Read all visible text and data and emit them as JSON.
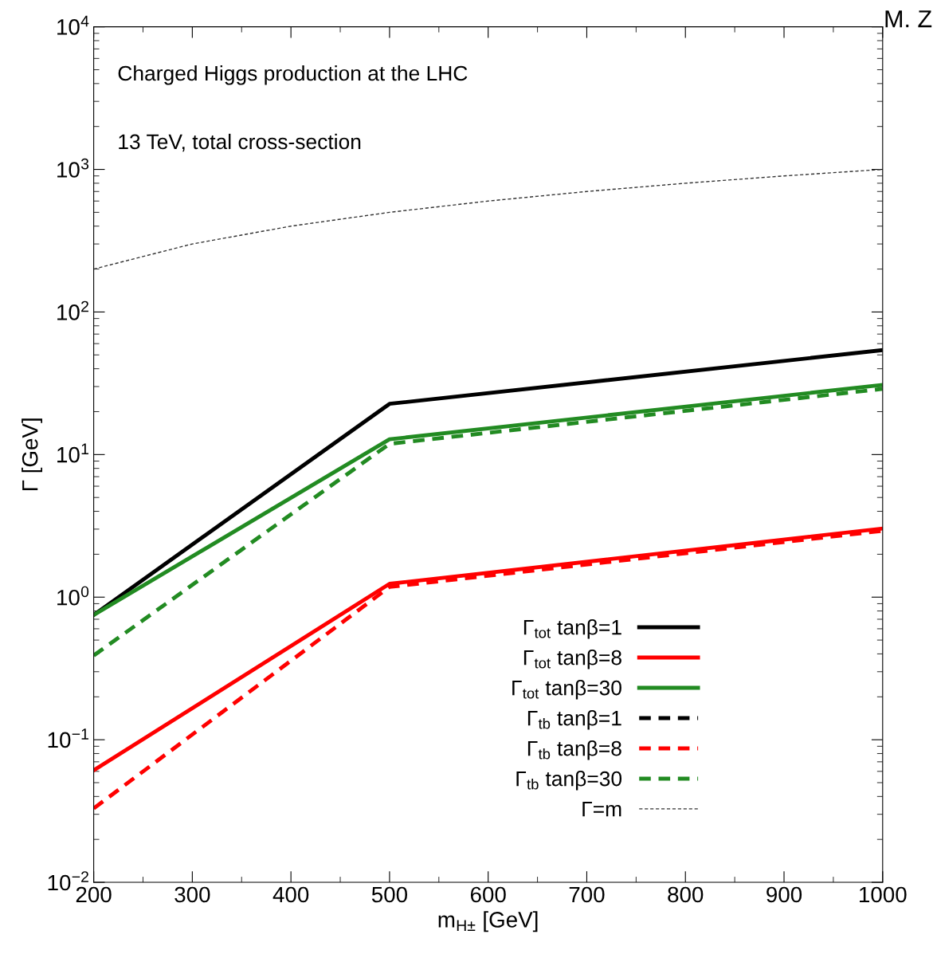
{
  "chart_data": {
    "type": "line",
    "xlabel": "m$_{H±}$ [GeV]",
    "ylabel": "Γ [GeV]",
    "annotations": [
      "Charged Higgs production at the LHC",
      "13 TeV, total cross-section",
      "M. Z"
    ],
    "x": [
      200,
      500,
      1000
    ],
    "series": [
      {
        "name": "Γ$_{tot}$ tanβ=1",
        "color": "#000000",
        "line_style": "solid",
        "values": [
          0.75,
          22.7,
          54
        ]
      },
      {
        "name": "Γ$_{tot}$ tanβ=8",
        "color": "#ff0000",
        "line_style": "solid",
        "values": [
          0.061,
          1.24,
          3.03
        ]
      },
      {
        "name": "Γ$_{tot}$ tanβ=30",
        "color": "#228b22",
        "line_style": "solid",
        "values": [
          0.75,
          12.8,
          30.8
        ]
      },
      {
        "name": "Γ$_{tb}$ tanβ=1",
        "color": "#000000",
        "line_style": "dashed",
        "values": [
          null,
          null,
          null
        ]
      },
      {
        "name": "Γ$_{tb}$ tanβ=8",
        "color": "#ff0000",
        "line_style": "dashed",
        "values": [
          0.033,
          1.18,
          2.92
        ]
      },
      {
        "name": "Γ$_{tb}$ tanβ=30",
        "color": "#228b22",
        "line_style": "dashed",
        "values": [
          0.39,
          11.9,
          28.9
        ]
      },
      {
        "name": "Γ=m",
        "color": "#333333",
        "line_style": "dashed",
        "x": [
          200,
          300,
          400,
          500,
          600,
          700,
          800,
          900,
          1000
        ],
        "values": [
          200,
          300,
          400,
          500,
          600,
          700,
          800,
          900,
          1000
        ]
      }
    ],
    "log": "y",
    "xlim": [
      200,
      1000
    ],
    "ylim": [
      0.01,
      10000
    ],
    "xticks": [
      200,
      300,
      400,
      500,
      600,
      700,
      800,
      900,
      1000
    ],
    "yticks": [
      {
        "value": 0.01,
        "label": "10$^{−2}$"
      },
      {
        "value": 0.1,
        "label": "10$^{−1}$"
      },
      {
        "value": 1,
        "label": "10$^{0}$"
      },
      {
        "value": 10,
        "label": "10$^{1}$"
      },
      {
        "value": 100,
        "label": "10$^{2}$"
      },
      {
        "value": 1000,
        "label": "10$^{3}$"
      },
      {
        "value": 10000,
        "label": "10$^{4}$"
      }
    ],
    "grid": false,
    "legend": "bottom right",
    "marker": "none"
  }
}
